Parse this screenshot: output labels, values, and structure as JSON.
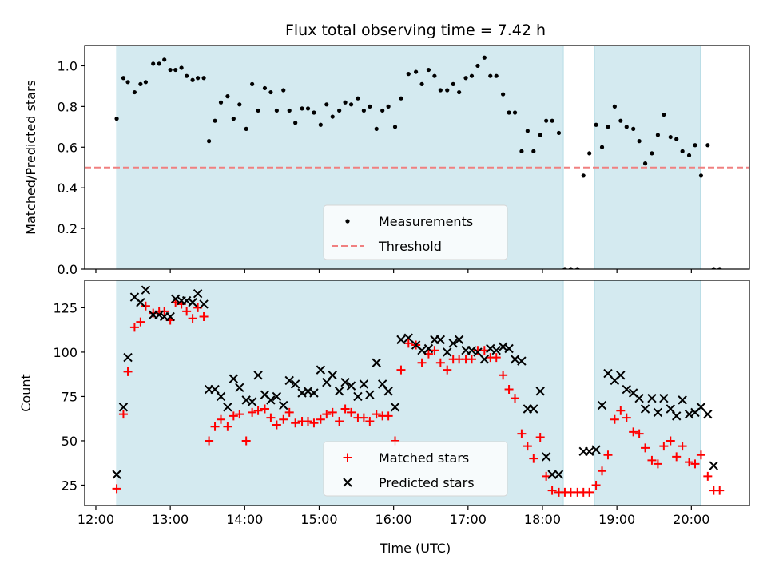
{
  "chart_data": {
    "title": "Flux total observing time = 7.42 h",
    "xlabel": "Time (UTC)",
    "x_tick_labels": [
      "12:00",
      "13:00",
      "14:00",
      "15:00",
      "16:00",
      "17:00",
      "18:00",
      "19:00",
      "20:00"
    ],
    "xlim_hours": [
      11.85,
      20.78
    ],
    "shaded_intervals_hours": [
      [
        12.28,
        18.28
      ],
      [
        18.7,
        20.12
      ]
    ],
    "shade_color": "#d4eaf0",
    "panels": [
      {
        "type": "scatter",
        "ylabel": "Matched/Predicted stars",
        "ylim": [
          0.0,
          1.1
        ],
        "y_ticks": [
          0.0,
          0.2,
          0.4,
          0.6,
          0.8,
          1.0
        ],
        "y_tick_labels": [
          "0.0",
          "0.2",
          "0.4",
          "0.6",
          "0.8",
          "1.0"
        ],
        "legend": {
          "position": "lower-center",
          "items": [
            "Measurements",
            "Threshold"
          ]
        },
        "threshold": {
          "name": "Threshold",
          "value": 0.5,
          "color": "#f08080"
        },
        "series": [
          {
            "name": "Measurements",
            "marker": "dot",
            "color": "#000000",
            "x": [
              12.28,
              12.37,
              12.43,
              12.52,
              12.6,
              12.67,
              12.77,
              12.85,
              12.92,
              13.0,
              13.07,
              13.15,
              13.22,
              13.3,
              13.37,
              13.45,
              13.52,
              13.6,
              13.68,
              13.77,
              13.85,
              13.93,
              14.02,
              14.1,
              14.18,
              14.27,
              14.35,
              14.43,
              14.52,
              14.6,
              14.68,
              14.77,
              14.85,
              14.93,
              15.02,
              15.1,
              15.18,
              15.27,
              15.35,
              15.43,
              15.52,
              15.6,
              15.68,
              15.77,
              15.85,
              15.93,
              16.02,
              16.1,
              16.2,
              16.3,
              16.38,
              16.47,
              16.55,
              16.63,
              16.72,
              16.8,
              16.88,
              16.97,
              17.05,
              17.13,
              17.22,
              17.3,
              17.38,
              17.47,
              17.55,
              17.63,
              17.72,
              17.8,
              17.88,
              17.97,
              18.05,
              18.13,
              18.22,
              18.3,
              18.38,
              18.47,
              18.55,
              18.63,
              18.72,
              18.8,
              18.88,
              18.97,
              19.05,
              19.13,
              19.22,
              19.3,
              19.38,
              19.47,
              19.55,
              19.63,
              19.72,
              19.8,
              19.88,
              19.97,
              20.05,
              20.13,
              20.22,
              20.3,
              20.38
            ],
            "y": [
              0.74,
              0.94,
              0.92,
              0.87,
              0.91,
              0.92,
              1.01,
              1.01,
              1.03,
              0.98,
              0.98,
              0.99,
              0.95,
              0.93,
              0.94,
              0.94,
              0.63,
              0.73,
              0.82,
              0.85,
              0.74,
              0.81,
              0.69,
              0.91,
              0.78,
              0.89,
              0.87,
              0.78,
              0.88,
              0.78,
              0.72,
              0.79,
              0.79,
              0.77,
              0.71,
              0.81,
              0.75,
              0.78,
              0.82,
              0.81,
              0.84,
              0.78,
              0.8,
              0.69,
              0.78,
              0.8,
              0.7,
              0.84,
              0.96,
              0.97,
              0.91,
              0.98,
              0.95,
              0.88,
              0.88,
              0.91,
              0.87,
              0.94,
              0.95,
              1.0,
              1.04,
              0.95,
              0.95,
              0.86,
              0.77,
              0.77,
              0.58,
              0.68,
              0.58,
              0.66,
              0.73,
              0.73,
              0.67,
              0.0,
              0.0,
              0.0,
              0.46,
              0.57,
              0.71,
              0.6,
              0.7,
              0.8,
              0.73,
              0.7,
              0.69,
              0.63,
              0.52,
              0.57,
              0.66,
              0.76,
              0.65,
              0.64,
              0.58,
              0.56,
              0.61,
              0.46,
              0.61,
              0.0,
              0.0
            ]
          }
        ]
      },
      {
        "type": "scatter",
        "ylabel": "Count",
        "ylim": [
          13.5,
          140.5
        ],
        "y_ticks": [
          25,
          50,
          75,
          100,
          125
        ],
        "y_tick_labels": [
          "25",
          "50",
          "75",
          "100",
          "125"
        ],
        "legend": {
          "position": "lower-center",
          "items": [
            "Matched stars",
            "Predicted stars"
          ]
        },
        "series": [
          {
            "name": "Matched stars",
            "marker": "plus",
            "color": "#ff0000",
            "x": [
              12.28,
              12.37,
              12.43,
              12.52,
              12.6,
              12.67,
              12.77,
              12.85,
              12.92,
              13.0,
              13.07,
              13.15,
              13.22,
              13.3,
              13.37,
              13.45,
              13.52,
              13.6,
              13.68,
              13.77,
              13.85,
              13.93,
              14.02,
              14.1,
              14.18,
              14.27,
              14.35,
              14.43,
              14.52,
              14.6,
              14.68,
              14.77,
              14.85,
              14.93,
              15.02,
              15.1,
              15.18,
              15.27,
              15.35,
              15.43,
              15.52,
              15.6,
              15.68,
              15.77,
              15.85,
              15.93,
              16.02,
              16.1,
              16.2,
              16.3,
              16.38,
              16.47,
              16.55,
              16.63,
              16.72,
              16.8,
              16.88,
              16.97,
              17.05,
              17.13,
              17.22,
              17.3,
              17.38,
              17.47,
              17.55,
              17.63,
              17.72,
              17.8,
              17.88,
              17.97,
              18.05,
              18.13,
              18.22,
              18.3,
              18.38,
              18.47,
              18.55,
              18.63,
              18.72,
              18.8,
              18.88,
              18.97,
              19.05,
              19.13,
              19.22,
              19.3,
              19.38,
              19.47,
              19.55,
              19.63,
              19.72,
              19.8,
              19.88,
              19.97,
              20.05,
              20.13,
              20.22,
              20.3,
              20.38
            ],
            "y": [
              23,
              65,
              89,
              114,
              117,
              126,
              122,
              123,
              123,
              118,
              128,
              127,
              123,
              119,
              125,
              120,
              50,
              58,
              62,
              58,
              64,
              65,
              50,
              66,
              67,
              68,
              63,
              59,
              62,
              66,
              60,
              61,
              61,
              60,
              62,
              65,
              66,
              61,
              68,
              66,
              63,
              63,
              61,
              65,
              64,
              64,
              50,
              90,
              105,
              104,
              94,
              99,
              101,
              94,
              90,
              96,
              96,
              96,
              96,
              101,
              101,
              97,
              97,
              87,
              79,
              74,
              54,
              47,
              40,
              52,
              30,
              22,
              21,
              21,
              21,
              21,
              21,
              21,
              25,
              33,
              42,
              62,
              67,
              63,
              55,
              54,
              46,
              39,
              37,
              47,
              50,
              41,
              47,
              38,
              37,
              42,
              30,
              22,
              22
            ]
          },
          {
            "name": "Predicted stars",
            "marker": "x",
            "color": "#000000",
            "x": [
              12.28,
              12.37,
              12.43,
              12.52,
              12.6,
              12.67,
              12.77,
              12.85,
              12.92,
              13.0,
              13.07,
              13.15,
              13.22,
              13.3,
              13.37,
              13.45,
              13.52,
              13.6,
              13.68,
              13.77,
              13.85,
              13.93,
              14.02,
              14.1,
              14.18,
              14.27,
              14.35,
              14.43,
              14.52,
              14.6,
              14.68,
              14.77,
              14.85,
              14.93,
              15.02,
              15.1,
              15.18,
              15.27,
              15.35,
              15.43,
              15.52,
              15.6,
              15.68,
              15.77,
              15.85,
              15.93,
              16.02,
              16.1,
              16.2,
              16.3,
              16.38,
              16.47,
              16.55,
              16.63,
              16.72,
              16.8,
              16.88,
              16.97,
              17.05,
              17.13,
              17.22,
              17.3,
              17.38,
              17.47,
              17.55,
              17.63,
              17.72,
              17.8,
              17.88,
              17.97,
              18.05,
              18.13,
              18.22,
              18.55,
              18.63,
              18.72,
              18.8,
              18.88,
              18.97,
              19.05,
              19.13,
              19.22,
              19.3,
              19.38,
              19.47,
              19.55,
              19.63,
              19.72,
              19.8,
              19.88,
              19.97,
              20.05,
              20.13,
              20.22,
              20.3
            ],
            "y": [
              31,
              69,
              97,
              131,
              128,
              135,
              121,
              121,
              120,
              120,
              130,
              129,
              129,
              128,
              133,
              127,
              79,
              79,
              75,
              69,
              85,
              80,
              73,
              72,
              87,
              76,
              73,
              75,
              70,
              84,
              82,
              77,
              78,
              77,
              90,
              83,
              87,
              78,
              83,
              81,
              75,
              82,
              76,
              94,
              82,
              78,
              69,
              107,
              108,
              104,
              101,
              102,
              107,
              107,
              100,
              105,
              107,
              101,
              101,
              100,
              96,
              102,
              101,
              103,
              102,
              96,
              95,
              68,
              68,
              78,
              41,
              31,
              31,
              44,
              44,
              45,
              70,
              88,
              84,
              87,
              79,
              77,
              74,
              68,
              74,
              66,
              74,
              68,
              64,
              73,
              65,
              66,
              69,
              65,
              36
            ]
          }
        ]
      }
    ]
  }
}
